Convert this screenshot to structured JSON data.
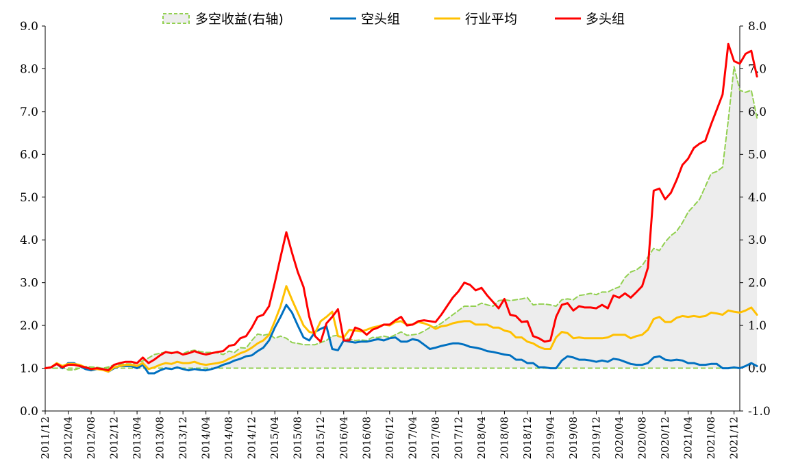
{
  "chart_data": {
    "type": "line",
    "legend": {
      "placement": "top",
      "entries": [
        {
          "label": "多空收益(右轴)",
          "color": "#92D050",
          "style": "dashed-area"
        },
        {
          "label": "空头组",
          "color": "#0070C0",
          "style": "line"
        },
        {
          "label": "行业平均",
          "color": "#FFC000",
          "style": "line"
        },
        {
          "label": "多头组",
          "color": "#FF0000",
          "style": "line"
        }
      ]
    },
    "left_axis": {
      "ylim": [
        0,
        9
      ],
      "ticks": [
        "0.0",
        "1.0",
        "2.0",
        "3.0",
        "4.0",
        "5.0",
        "6.0",
        "7.0",
        "8.0",
        "9.0"
      ]
    },
    "right_axis": {
      "ylim": [
        -1,
        8
      ],
      "ticks": [
        "-1.0",
        "0.0",
        "1.0",
        "2.0",
        "3.0",
        "4.0",
        "5.0",
        "6.0",
        "7.0",
        "8.0"
      ]
    },
    "x_start": "2011/12",
    "x_end": "2022/01",
    "x_tick_labels": [
      "2011/12",
      "2012/04",
      "2012/08",
      "2012/12",
      "2013/04",
      "2013/08",
      "2013/12",
      "2014/04",
      "2014/08",
      "2014/12",
      "2015/04",
      "2015/08",
      "2015/12",
      "2016/04",
      "2016/08",
      "2016/12",
      "2017/04",
      "2017/08",
      "2017/12",
      "2018/04",
      "2018/08",
      "2018/12",
      "2019/04",
      "2019/08",
      "2019/12",
      "2020/04",
      "2020/08",
      "2020/12",
      "2021/04",
      "2021/08",
      "2021/12"
    ],
    "grid": false,
    "series": [
      {
        "name": "多头组",
        "color": "#FF0000",
        "axis": "left",
        "values": [
          1.0,
          1.02,
          1.1,
          1.02,
          1.08,
          1.08,
          1.05,
          1.02,
          0.98,
          1.0,
          0.98,
          0.95,
          1.08,
          1.12,
          1.15,
          1.15,
          1.12,
          1.25,
          1.12,
          1.2,
          1.3,
          1.38,
          1.35,
          1.38,
          1.32,
          1.35,
          1.4,
          1.35,
          1.32,
          1.35,
          1.38,
          1.4,
          1.52,
          1.55,
          1.7,
          1.75,
          1.95,
          2.2,
          2.25,
          2.45,
          3.0,
          3.6,
          4.18,
          3.7,
          3.25,
          2.9,
          2.2,
          1.75,
          1.62,
          2.05,
          2.2,
          2.38,
          1.65,
          1.65,
          1.95,
          1.9,
          1.78,
          1.9,
          1.95,
          2.02,
          2.02,
          2.12,
          2.2,
          2.0,
          2.02,
          2.1,
          2.12,
          2.1,
          2.08,
          2.25,
          2.45,
          2.65,
          2.8,
          3.0,
          2.95,
          2.82,
          2.88,
          2.7,
          2.55,
          2.4,
          2.62,
          2.25,
          2.22,
          2.08,
          2.1,
          1.75,
          1.7,
          1.62,
          1.65,
          2.2,
          2.48,
          2.52,
          2.35,
          2.45,
          2.42,
          2.42,
          2.4,
          2.48,
          2.4,
          2.7,
          2.65,
          2.75,
          2.65,
          2.78,
          2.92,
          3.35,
          5.15,
          5.2,
          4.95,
          5.1,
          5.4,
          5.75,
          5.9,
          6.15,
          6.25,
          6.32,
          6.7,
          7.05,
          7.4,
          8.58,
          8.18,
          8.12,
          8.35,
          8.42,
          7.82
        ]
      },
      {
        "name": "行业平均",
        "color": "#FFC000",
        "axis": "left",
        "values": [
          1.0,
          1.02,
          1.12,
          1.05,
          1.1,
          1.1,
          1.08,
          1.02,
          0.98,
          0.98,
          0.96,
          0.92,
          1.02,
          1.05,
          1.08,
          1.08,
          1.05,
          1.12,
          0.98,
          1.02,
          1.08,
          1.12,
          1.1,
          1.15,
          1.12,
          1.12,
          1.15,
          1.1,
          1.08,
          1.1,
          1.12,
          1.15,
          1.22,
          1.28,
          1.35,
          1.4,
          1.48,
          1.58,
          1.65,
          1.78,
          2.1,
          2.45,
          2.92,
          2.6,
          2.3,
          2.0,
          1.85,
          1.82,
          2.1,
          2.2,
          2.32,
          1.75,
          1.72,
          1.9,
          1.88,
          1.86,
          1.9,
          1.95,
          1.98,
          2.02,
          2.0,
          2.08,
          2.1,
          2.02,
          2.02,
          2.08,
          2.05,
          2.0,
          1.92,
          1.98,
          2.0,
          2.05,
          2.08,
          2.1,
          2.1,
          2.02,
          2.02,
          2.02,
          1.95,
          1.95,
          1.88,
          1.85,
          1.72,
          1.72,
          1.62,
          1.58,
          1.5,
          1.45,
          1.45,
          1.72,
          1.85,
          1.82,
          1.7,
          1.72,
          1.7,
          1.7,
          1.7,
          1.7,
          1.72,
          1.78,
          1.78,
          1.78,
          1.7,
          1.75,
          1.78,
          1.9,
          2.15,
          2.2,
          2.08,
          2.08,
          2.18,
          2.22,
          2.2,
          2.22,
          2.2,
          2.22,
          2.3,
          2.28,
          2.25,
          2.35,
          2.32,
          2.3,
          2.35,
          2.42,
          2.25
        ]
      },
      {
        "name": "空头组",
        "color": "#0070C0",
        "axis": "left",
        "values": [
          1.0,
          1.02,
          1.1,
          1.0,
          1.12,
          1.12,
          1.05,
          0.98,
          0.95,
          0.98,
          0.98,
          0.92,
          1.0,
          1.05,
          1.05,
          1.05,
          1.0,
          1.08,
          0.88,
          0.88,
          0.95,
          1.0,
          0.98,
          1.02,
          0.98,
          0.95,
          0.98,
          0.96,
          0.95,
          0.98,
          1.02,
          1.08,
          1.12,
          1.18,
          1.22,
          1.28,
          1.3,
          1.4,
          1.48,
          1.65,
          1.95,
          2.2,
          2.48,
          2.3,
          2.0,
          1.72,
          1.65,
          1.85,
          1.92,
          1.98,
          1.45,
          1.42,
          1.65,
          1.62,
          1.6,
          1.62,
          1.62,
          1.65,
          1.68,
          1.65,
          1.7,
          1.72,
          1.62,
          1.62,
          1.68,
          1.65,
          1.55,
          1.45,
          1.48,
          1.52,
          1.55,
          1.58,
          1.58,
          1.55,
          1.5,
          1.48,
          1.45,
          1.4,
          1.38,
          1.35,
          1.32,
          1.3,
          1.2,
          1.2,
          1.12,
          1.12,
          1.02,
          1.02,
          1.0,
          1.0,
          1.18,
          1.28,
          1.25,
          1.2,
          1.2,
          1.18,
          1.15,
          1.18,
          1.15,
          1.22,
          1.2,
          1.15,
          1.1,
          1.08,
          1.08,
          1.12,
          1.25,
          1.28,
          1.2,
          1.18,
          1.2,
          1.18,
          1.12,
          1.12,
          1.08,
          1.08,
          1.1,
          1.1,
          1.0,
          1.0,
          1.02,
          1.0,
          1.05,
          1.12,
          1.05
        ]
      },
      {
        "name": "多空收益(右轴)",
        "color": "#92D050",
        "axis": "right",
        "dashed": true,
        "fill": "#EDEDED",
        "values": [
          0.0,
          0.0,
          0.0,
          0.02,
          -0.04,
          -0.04,
          0.0,
          0.04,
          0.03,
          0.02,
          0.0,
          0.03,
          0.08,
          0.08,
          0.1,
          0.1,
          0.12,
          0.17,
          0.24,
          0.32,
          0.35,
          0.38,
          0.37,
          0.36,
          0.34,
          0.4,
          0.42,
          0.39,
          0.37,
          0.37,
          0.36,
          0.32,
          0.4,
          0.37,
          0.48,
          0.47,
          0.65,
          0.8,
          0.77,
          0.8,
          0.7,
          0.75,
          0.7,
          0.6,
          0.58,
          0.55,
          0.55,
          0.55,
          0.6,
          0.65,
          0.75,
          0.77,
          0.7,
          0.68,
          0.65,
          0.66,
          0.65,
          0.72,
          0.72,
          0.75,
          0.72,
          0.78,
          0.85,
          0.77,
          0.78,
          0.8,
          0.87,
          0.95,
          0.97,
          1.05,
          1.15,
          1.25,
          1.35,
          1.45,
          1.45,
          1.45,
          1.52,
          1.48,
          1.45,
          1.58,
          1.6,
          1.58,
          1.6,
          1.62,
          1.65,
          1.48,
          1.5,
          1.5,
          1.48,
          1.45,
          1.6,
          1.62,
          1.6,
          1.7,
          1.72,
          1.75,
          1.72,
          1.78,
          1.78,
          1.85,
          1.9,
          2.12,
          2.25,
          2.3,
          2.4,
          2.6,
          2.8,
          2.75,
          2.95,
          3.1,
          3.2,
          3.4,
          3.65,
          3.8,
          3.95,
          4.25,
          4.55,
          4.6,
          4.7,
          5.8,
          7.05,
          6.5,
          6.45,
          6.5,
          5.85
        ]
      }
    ]
  }
}
